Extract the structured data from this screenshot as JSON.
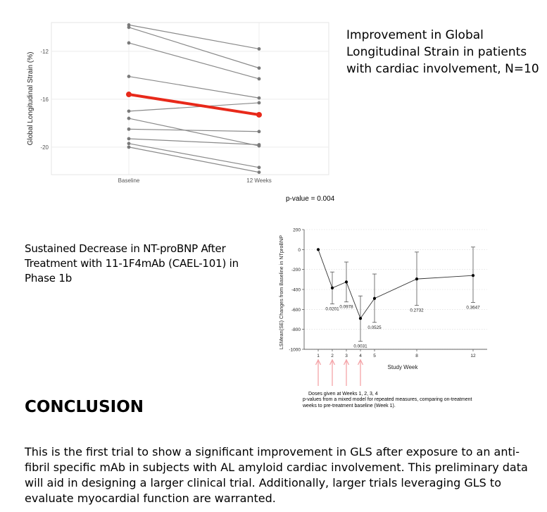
{
  "gls_title": "Improvement in Global Longitudinal Strain in patients with cardiac involvement, N=10",
  "gls_pvalue": "p-value = 0.004",
  "bnp_title": "Sustained Decrease in NT-proBNP After Treatment with 11-1F4mAb (CAEL-101) in Phase 1b",
  "dose_note": "Doses given at Weeks 1, 2, 3, 4",
  "pvalue_note": "p-values from a mixed model for repeated measures, comparing on-treatment weeks to pre-treatment baseline (Week 1).",
  "conclusion_heading": "CONCLUSION",
  "conclusion_text": "This is the first trial to show a significant improvement in GLS after exposure to an anti-fibril specific mAb in subjects with AL amyloid cardiac involvement. This preliminary data will aid in designing a larger clinical trial. Additionally, larger trials leveraging GLS to evaluate myocardial function are warranted.",
  "colors": {
    "mean_line": "#e8291a",
    "patient_line": "#8a8a8a",
    "arrow": "#f4a4a8"
  },
  "chart_data": [
    {
      "type": "line",
      "categories": [
        "Baseline",
        "12 Weeks"
      ],
      "ylabel": "Global Longitudinal Strain (%)",
      "xlabel": "",
      "ylim": [
        -22.3,
        -9.6
      ],
      "y_ticks": [
        -12,
        -16,
        -20
      ],
      "grid": true,
      "series": [
        {
          "values": [
            -9.8,
            -11.8
          ]
        },
        {
          "values": [
            -10.0,
            -13.4
          ]
        },
        {
          "values": [
            -11.3,
            -14.3
          ]
        },
        {
          "values": [
            -14.1,
            -15.9
          ]
        },
        {
          "values": [
            -17.0,
            -16.3
          ]
        },
        {
          "values": [
            -17.6,
            -19.9
          ]
        },
        {
          "values": [
            -18.5,
            -18.7
          ]
        },
        {
          "values": [
            -19.3,
            -19.8
          ]
        },
        {
          "values": [
            -19.7,
            -21.7
          ]
        },
        {
          "values": [
            -20.0,
            -22.1
          ]
        }
      ],
      "mean_series": {
        "values": [
          -15.6,
          -17.3
        ]
      }
    },
    {
      "type": "line",
      "x": [
        1,
        2,
        3,
        4,
        5,
        8,
        12
      ],
      "y": [
        0,
        -385,
        -325,
        -690,
        -490,
        -295,
        -260
      ],
      "error": [
        [
          0,
          0
        ],
        [
          -545,
          -225
        ],
        [
          -525,
          -125
        ],
        [
          -920,
          -465
        ],
        [
          -730,
          -245
        ],
        [
          -560,
          -25
        ],
        [
          -530,
          25
        ]
      ],
      "point_labels": [
        "",
        "0.0201",
        "0.0978",
        "0.0031",
        "0.0525",
        "0.2732",
        "0.3647"
      ],
      "xlabel": "Study Week",
      "ylabel": "LSMean(SE) Changes from Baseline in NTproBNP",
      "ylim": [
        -1000,
        200
      ],
      "y_ticks": [
        200,
        0,
        -200,
        -400,
        -600,
        -800,
        -1000
      ],
      "x_ticks": [
        1,
        2,
        3,
        4,
        5,
        8,
        12
      ],
      "xlim": [
        0,
        13
      ],
      "grid": true,
      "dose_weeks": [
        1,
        2,
        3,
        4
      ]
    }
  ]
}
